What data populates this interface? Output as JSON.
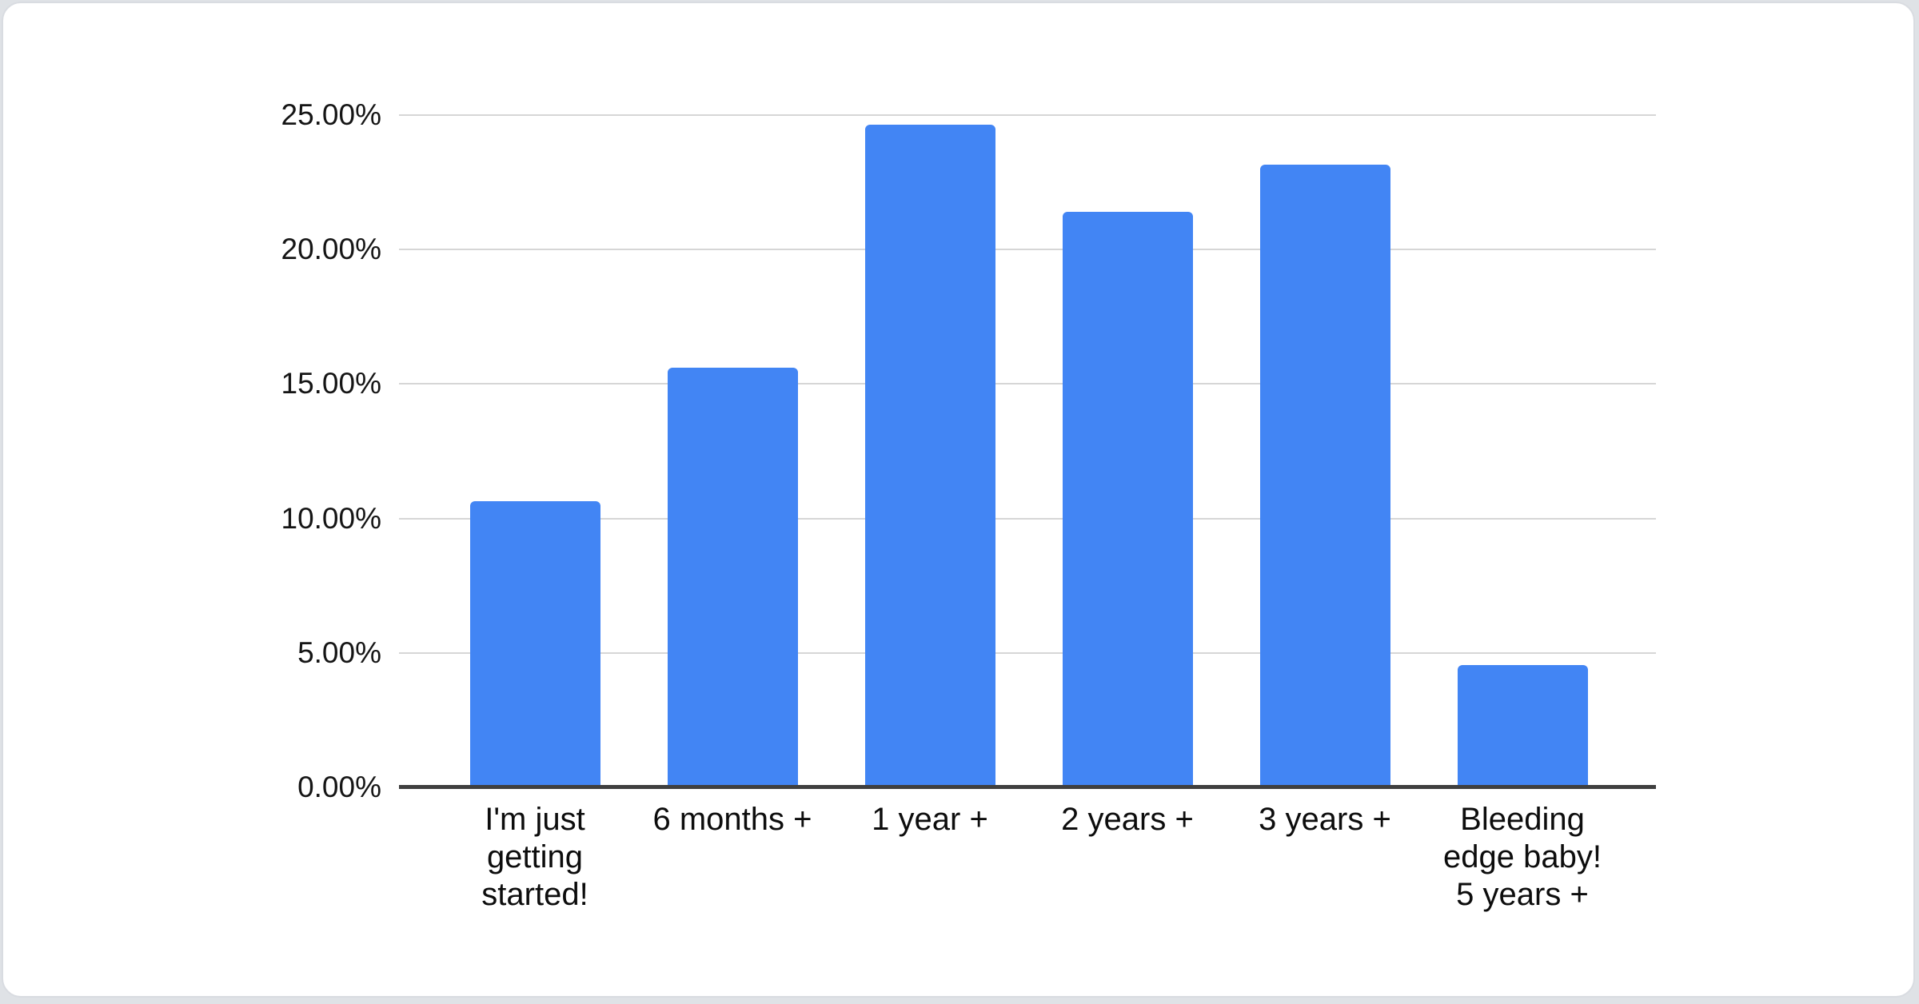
{
  "chart_data": {
    "type": "bar",
    "categories": [
      "I'm just getting started!",
      "6 months +",
      "1 year +",
      "2 years +",
      "3 years +",
      "Bleeding edge baby! 5 years +"
    ],
    "category_lines": [
      [
        "I'm just",
        "getting",
        "started!"
      ],
      [
        "6 months +"
      ],
      [
        "1 year +"
      ],
      [
        "2 years +"
      ],
      [
        "3 years +"
      ],
      [
        "Bleeding",
        "edge baby!",
        "5 years +"
      ]
    ],
    "values": [
      10.65,
      15.6,
      24.65,
      21.4,
      23.15,
      4.55
    ],
    "unit": "%",
    "y_tick_labels": [
      "25.00%",
      "20.00%",
      "15.00%",
      "10.00%",
      "5.00%",
      "0.00%"
    ],
    "ylim": [
      0,
      25
    ],
    "y_tick_step": 5,
    "grid": true,
    "legend_position": "none",
    "colors": {
      "bar": "#4285f4",
      "gridline": "#d6d6d6",
      "axis": "#3f3f3f",
      "label": "#0d0d0d",
      "card_background": "#ffffff",
      "card_border": "#d9dce1",
      "page_background": "#dfe2e6"
    }
  }
}
